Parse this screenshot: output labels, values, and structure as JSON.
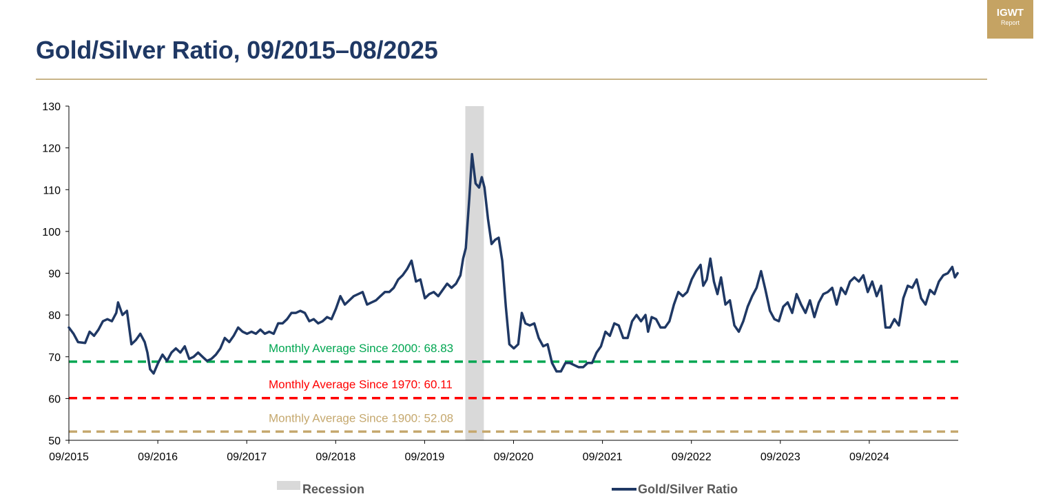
{
  "header": {
    "title": "Gold/Silver Ratio, 09/2015–08/2025",
    "logo_line1": "IGWT",
    "logo_line2": "Report"
  },
  "colors": {
    "title": "#1f3864",
    "series": "#1f3864",
    "avg2000": "#00a651",
    "avg1970": "#ff0000",
    "avg1900": "#c5a86e",
    "recession": "#d9d9d9",
    "rule": "#c8b487",
    "logo_bg": "#c5a363"
  },
  "chart_data": {
    "type": "line",
    "title": "Gold/Silver Ratio, 09/2015–08/2025",
    "xlabel": "",
    "ylabel": "",
    "ylim": [
      50,
      130
    ],
    "yticks": [
      50,
      60,
      70,
      80,
      90,
      100,
      110,
      120,
      130
    ],
    "x_range": [
      2015.667,
      2025.667
    ],
    "xticks": [
      {
        "label": "09/2015",
        "t": 2015.667
      },
      {
        "label": "09/2016",
        "t": 2016.667
      },
      {
        "label": "09/2017",
        "t": 2017.667
      },
      {
        "label": "09/2018",
        "t": 2018.667
      },
      {
        "label": "09/2019",
        "t": 2019.667
      },
      {
        "label": "09/2020",
        "t": 2020.667
      },
      {
        "label": "09/2021",
        "t": 2021.667
      },
      {
        "label": "09/2022",
        "t": 2022.667
      },
      {
        "label": "09/2023",
        "t": 2023.667
      },
      {
        "label": "09/2024",
        "t": 2024.667
      }
    ],
    "recession": {
      "label": "Recession",
      "start": 2020.125,
      "end": 2020.333
    },
    "reference_lines": [
      {
        "key": "avg2000",
        "label": "Monthly Average Since 2000: 68.83",
        "value": 68.83
      },
      {
        "key": "avg1970",
        "label": "Monthly Average Since 1970: 60.11",
        "value": 60.11
      },
      {
        "key": "avg1900",
        "label": "Monthly Average Since 1900: 52.08",
        "value": 52.08
      }
    ],
    "series": [
      {
        "name": "Gold/Silver Ratio",
        "points": [
          [
            2015.667,
            77
          ],
          [
            2015.72,
            75.5
          ],
          [
            2015.77,
            73.5
          ],
          [
            2015.85,
            73.3
          ],
          [
            2015.9,
            76
          ],
          [
            2015.95,
            75
          ],
          [
            2016.0,
            76.5
          ],
          [
            2016.05,
            78.5
          ],
          [
            2016.1,
            79
          ],
          [
            2016.15,
            78.5
          ],
          [
            2016.2,
            80.5
          ],
          [
            2016.22,
            83
          ],
          [
            2016.27,
            80
          ],
          [
            2016.32,
            81
          ],
          [
            2016.37,
            73
          ],
          [
            2016.42,
            74
          ],
          [
            2016.47,
            75.5
          ],
          [
            2016.52,
            73.5
          ],
          [
            2016.55,
            71
          ],
          [
            2016.58,
            67
          ],
          [
            2016.62,
            66
          ],
          [
            2016.67,
            68.5
          ],
          [
            2016.72,
            70.5
          ],
          [
            2016.77,
            69
          ],
          [
            2016.82,
            71
          ],
          [
            2016.87,
            72
          ],
          [
            2016.92,
            71
          ],
          [
            2016.97,
            72.5
          ],
          [
            2017.02,
            69.5
          ],
          [
            2017.07,
            70
          ],
          [
            2017.12,
            71
          ],
          [
            2017.17,
            70
          ],
          [
            2017.22,
            69
          ],
          [
            2017.27,
            69.5
          ],
          [
            2017.32,
            70.5
          ],
          [
            2017.37,
            72
          ],
          [
            2017.42,
            74.5
          ],
          [
            2017.47,
            73.5
          ],
          [
            2017.52,
            75
          ],
          [
            2017.57,
            77
          ],
          [
            2017.62,
            76
          ],
          [
            2017.67,
            75.5
          ],
          [
            2017.72,
            76
          ],
          [
            2017.77,
            75.5
          ],
          [
            2017.82,
            76.5
          ],
          [
            2017.87,
            75.5
          ],
          [
            2017.92,
            76
          ],
          [
            2017.97,
            75.5
          ],
          [
            2018.02,
            78
          ],
          [
            2018.07,
            78
          ],
          [
            2018.12,
            79
          ],
          [
            2018.17,
            80.5
          ],
          [
            2018.22,
            80.5
          ],
          [
            2018.27,
            81
          ],
          [
            2018.32,
            80.5
          ],
          [
            2018.37,
            78.5
          ],
          [
            2018.42,
            79
          ],
          [
            2018.47,
            78
          ],
          [
            2018.52,
            78.5
          ],
          [
            2018.57,
            79.5
          ],
          [
            2018.62,
            79
          ],
          [
            2018.67,
            81.5
          ],
          [
            2018.72,
            84.5
          ],
          [
            2018.77,
            82.5
          ],
          [
            2018.82,
            83.5
          ],
          [
            2018.87,
            84.5
          ],
          [
            2018.92,
            85
          ],
          [
            2018.97,
            85.5
          ],
          [
            2019.02,
            82.5
          ],
          [
            2019.07,
            83
          ],
          [
            2019.12,
            83.5
          ],
          [
            2019.17,
            84.5
          ],
          [
            2019.22,
            85.5
          ],
          [
            2019.27,
            85.5
          ],
          [
            2019.32,
            86.5
          ],
          [
            2019.37,
            88.5
          ],
          [
            2019.42,
            89.5
          ],
          [
            2019.47,
            91
          ],
          [
            2019.52,
            93
          ],
          [
            2019.57,
            88
          ],
          [
            2019.62,
            88.5
          ],
          [
            2019.67,
            84
          ],
          [
            2019.72,
            85
          ],
          [
            2019.77,
            85.5
          ],
          [
            2019.82,
            84.5
          ],
          [
            2019.87,
            86
          ],
          [
            2019.92,
            87.5
          ],
          [
            2019.97,
            86.5
          ],
          [
            2020.02,
            87.5
          ],
          [
            2020.07,
            89.5
          ],
          [
            2020.1,
            93.5
          ],
          [
            2020.13,
            96
          ],
          [
            2020.17,
            108
          ],
          [
            2020.2,
            118.5
          ],
          [
            2020.24,
            111.5
          ],
          [
            2020.28,
            110.5
          ],
          [
            2020.31,
            113
          ],
          [
            2020.34,
            110.5
          ],
          [
            2020.38,
            103
          ],
          [
            2020.42,
            97
          ],
          [
            2020.46,
            98
          ],
          [
            2020.5,
            98.5
          ],
          [
            2020.54,
            93
          ],
          [
            2020.58,
            82
          ],
          [
            2020.62,
            73
          ],
          [
            2020.67,
            72
          ],
          [
            2020.72,
            73
          ],
          [
            2020.76,
            80.5
          ],
          [
            2020.8,
            78
          ],
          [
            2020.85,
            77.5
          ],
          [
            2020.9,
            78
          ],
          [
            2020.95,
            74.5
          ],
          [
            2021.0,
            72.5
          ],
          [
            2021.05,
            73
          ],
          [
            2021.1,
            68.5
          ],
          [
            2021.15,
            66.5
          ],
          [
            2021.2,
            66.5
          ],
          [
            2021.25,
            68.5
          ],
          [
            2021.3,
            68.5
          ],
          [
            2021.35,
            68
          ],
          [
            2021.4,
            67.5
          ],
          [
            2021.45,
            67.5
          ],
          [
            2021.5,
            68.5
          ],
          [
            2021.55,
            68.5
          ],
          [
            2021.6,
            71
          ],
          [
            2021.65,
            72.5
          ],
          [
            2021.7,
            76
          ],
          [
            2021.75,
            75
          ],
          [
            2021.8,
            78
          ],
          [
            2021.85,
            77.5
          ],
          [
            2021.9,
            74.5
          ],
          [
            2021.95,
            74.5
          ],
          [
            2022.0,
            78.5
          ],
          [
            2022.05,
            80
          ],
          [
            2022.1,
            78.5
          ],
          [
            2022.15,
            80
          ],
          [
            2022.18,
            76
          ],
          [
            2022.22,
            79.5
          ],
          [
            2022.27,
            79
          ],
          [
            2022.32,
            77
          ],
          [
            2022.37,
            77
          ],
          [
            2022.42,
            78.5
          ],
          [
            2022.47,
            82.5
          ],
          [
            2022.52,
            85.5
          ],
          [
            2022.57,
            84.5
          ],
          [
            2022.62,
            85.5
          ],
          [
            2022.67,
            88.5
          ],
          [
            2022.72,
            90.5
          ],
          [
            2022.77,
            92
          ],
          [
            2022.8,
            87
          ],
          [
            2022.84,
            88.5
          ],
          [
            2022.88,
            93.5
          ],
          [
            2022.92,
            88
          ],
          [
            2022.96,
            85
          ],
          [
            2023.0,
            89
          ],
          [
            2023.05,
            82.5
          ],
          [
            2023.1,
            83.5
          ],
          [
            2023.15,
            77.5
          ],
          [
            2023.2,
            76
          ],
          [
            2023.25,
            78.5
          ],
          [
            2023.3,
            82
          ],
          [
            2023.35,
            84.5
          ],
          [
            2023.4,
            86.5
          ],
          [
            2023.45,
            90.5
          ],
          [
            2023.5,
            86
          ],
          [
            2023.55,
            81
          ],
          [
            2023.6,
            79
          ],
          [
            2023.65,
            78.5
          ],
          [
            2023.7,
            82
          ],
          [
            2023.75,
            83
          ],
          [
            2023.8,
            80.5
          ],
          [
            2023.85,
            85
          ],
          [
            2023.9,
            82.5
          ],
          [
            2023.95,
            80.5
          ],
          [
            2024.0,
            83.5
          ],
          [
            2024.05,
            79.5
          ],
          [
            2024.1,
            83
          ],
          [
            2024.15,
            85
          ],
          [
            2024.2,
            85.5
          ],
          [
            2024.25,
            86.5
          ],
          [
            2024.3,
            82.5
          ],
          [
            2024.35,
            86.5
          ],
          [
            2024.4,
            85
          ],
          [
            2024.45,
            88
          ],
          [
            2024.5,
            89
          ],
          [
            2024.55,
            88
          ],
          [
            2024.6,
            89.5
          ],
          [
            2024.65,
            85.5
          ],
          [
            2024.7,
            88
          ],
          [
            2024.75,
            84.5
          ],
          [
            2024.8,
            87
          ],
          [
            2024.85,
            77
          ],
          [
            2024.9,
            77
          ],
          [
            2024.95,
            79
          ],
          [
            2025.0,
            77.5
          ],
          [
            2025.05,
            84
          ],
          [
            2025.1,
            87
          ],
          [
            2025.15,
            86.5
          ],
          [
            2025.2,
            88.5
          ],
          [
            2025.25,
            84
          ],
          [
            2025.3,
            82.5
          ],
          [
            2025.35,
            86
          ],
          [
            2025.4,
            85
          ],
          [
            2025.45,
            88
          ],
          [
            2025.5,
            89.5
          ],
          [
            2025.55,
            90
          ],
          [
            2025.6,
            91.5
          ],
          [
            2025.63,
            89
          ],
          [
            2025.66,
            90
          ]
        ]
      }
    ],
    "legend": [
      {
        "label": "Recession",
        "kind": "box"
      },
      {
        "label": "Gold/Silver Ratio",
        "kind": "line"
      }
    ]
  }
}
